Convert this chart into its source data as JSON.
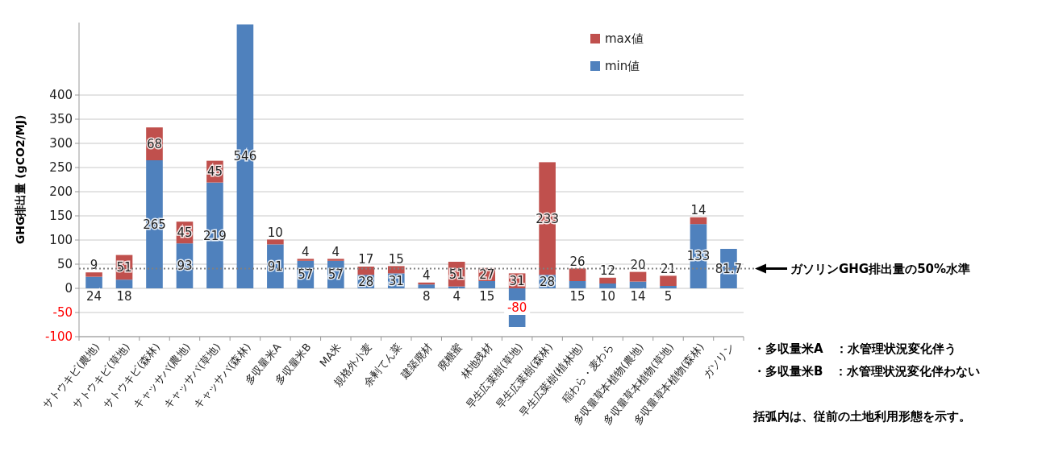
{
  "chart_data": {
    "type": "bar",
    "stacked": true,
    "ylabel": "GHG排出量 (gCO2/MJ)",
    "categories": [
      "サトウキビ(農地)",
      "サトウキビ(草地)",
      "サトウキビ(森林)",
      "キャッサバ(農地)",
      "キャッサバ(草地)",
      "キャッサバ(森林)",
      "多収量米A",
      "多収量米B",
      "MA米",
      "規格外小麦",
      "余剰てん菜",
      "建築廃材",
      "廃糖蜜",
      "林地残材",
      "早生広葉樹(草地)",
      "早生広葉樹(森林)",
      "早生広葉樹(植林地)",
      "稲わら・麦わら",
      "多収量草本植物(農地)",
      "多収量草本植物(草地)",
      "多収量草本植物(森林)",
      "ガソリン"
    ],
    "series": [
      {
        "name": "min値",
        "color": "#4f81bd",
        "values": [
          24,
          18,
          265,
          93,
          219,
          546,
          91,
          57,
          57,
          28,
          31,
          8,
          4,
          15,
          -80,
          28,
          15,
          10,
          14,
          5,
          133,
          81.7
        ]
      },
      {
        "name": "max値",
        "color": "#c0504d",
        "values": [
          9,
          51,
          68,
          45,
          45,
          null,
          10,
          4,
          4,
          17,
          15,
          4,
          51,
          27,
          31,
          233,
          26,
          12,
          20,
          21,
          14,
          null
        ]
      }
    ],
    "data_labels": true,
    "ylim": [
      -100,
      550
    ],
    "yticks": [
      -100,
      -50,
      0,
      50,
      100,
      150,
      200,
      250,
      300,
      350,
      400
    ],
    "grid": "y",
    "legend": "top right",
    "ref_lines": [
      {
        "axis": "y",
        "value": 40.85,
        "label": "ガソリンGHG排出量の50%水準",
        "line_style": "dotted",
        "color": "#808080"
      }
    ],
    "annotations": [
      "・多収量米A　：水管理状況変化伴う",
      "・多収量米B　：水管理状況変化伴わない",
      "括弧内は、従前の土地利用形態を示す。"
    ]
  }
}
